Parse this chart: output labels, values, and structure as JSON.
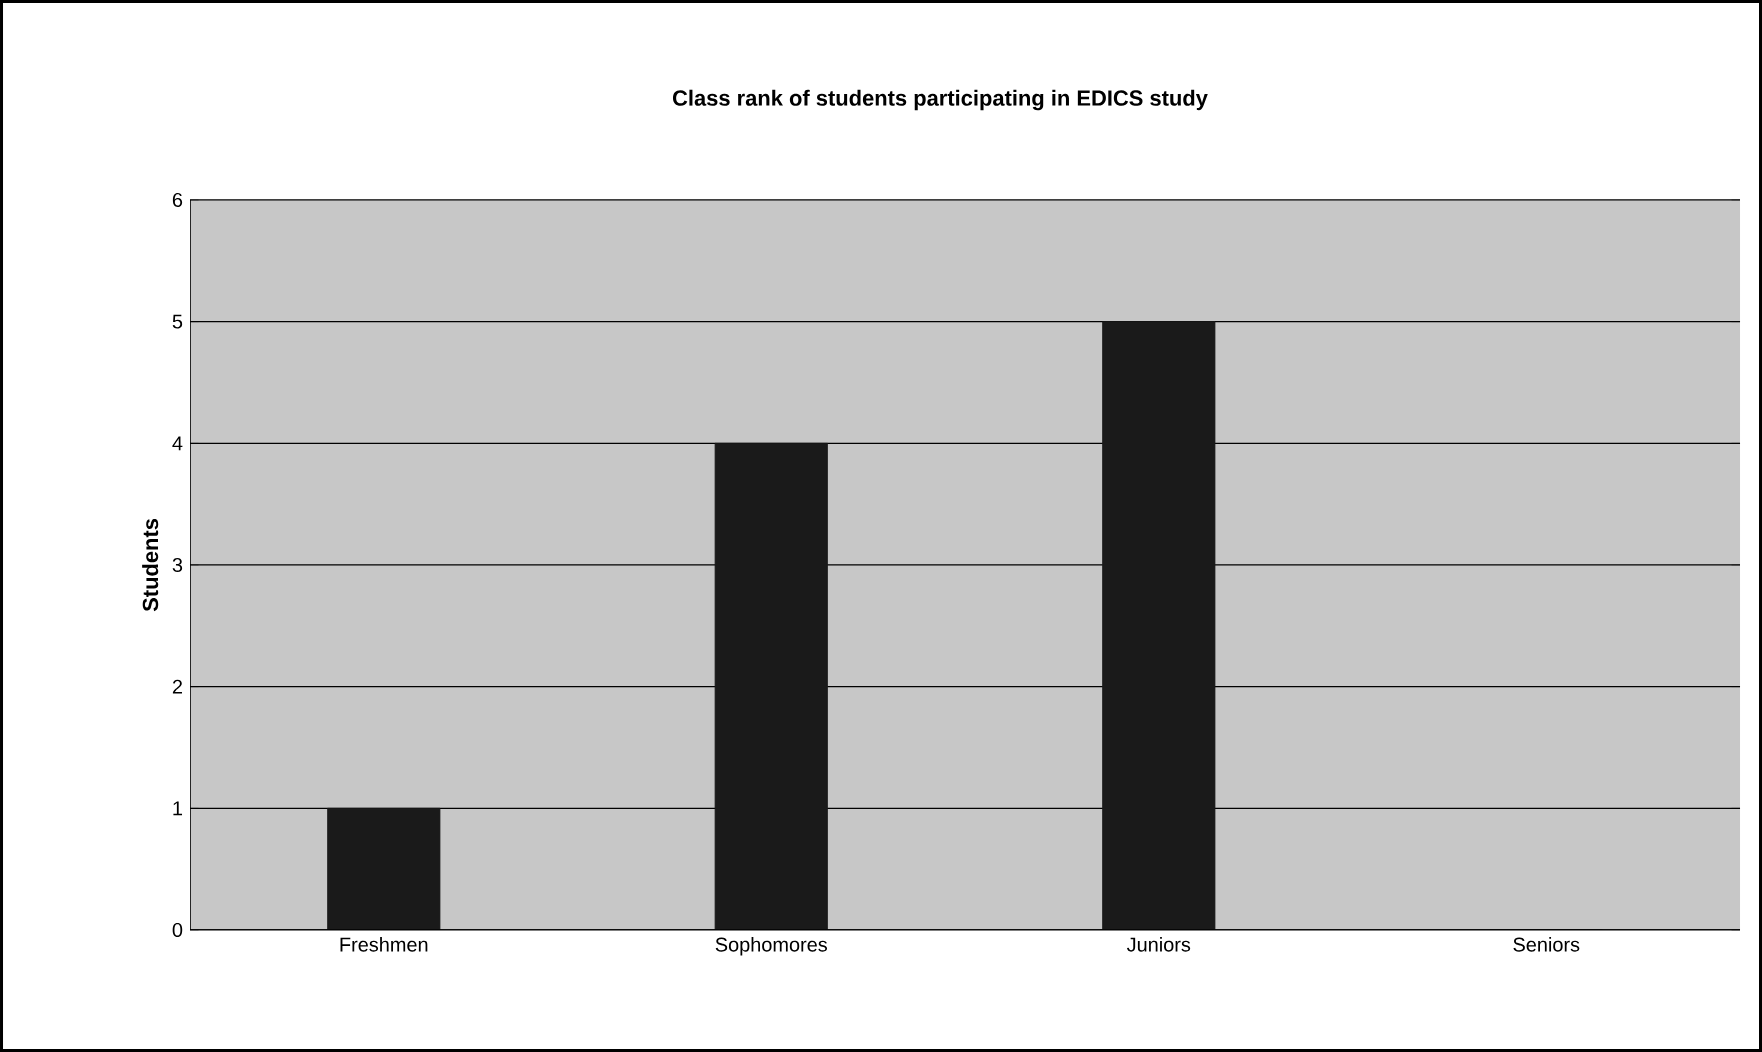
{
  "chart_data": {
    "type": "bar",
    "title": "Class rank of students participating in EDICS study",
    "ylabel": "Students",
    "categories": [
      "Freshmen",
      "Sophomores",
      "Juniors",
      "Seniors"
    ],
    "values": [
      1,
      4,
      5,
      0
    ],
    "color": "#1a1a1a",
    "ylim": [
      0,
      6
    ],
    "yticks": [
      0,
      1,
      2,
      3,
      4,
      5,
      6
    ],
    "grid": "y"
  }
}
